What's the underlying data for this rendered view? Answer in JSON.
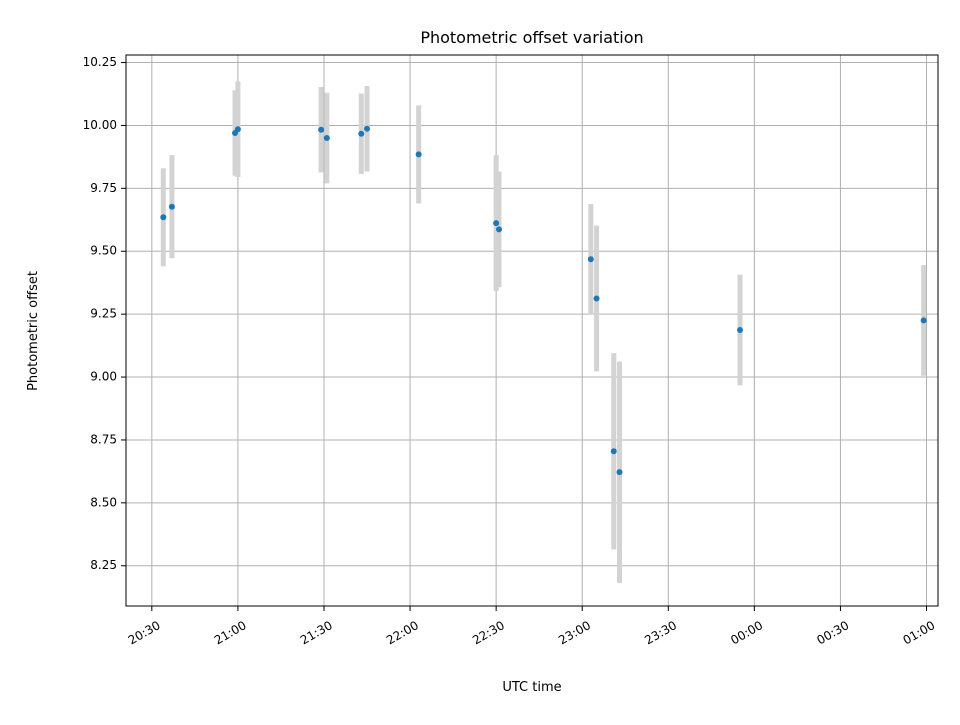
{
  "chart_data": {
    "type": "scatter",
    "title": "Photometric offset variation",
    "xlabel": "UTC time",
    "ylabel": "Photometric offset",
    "x_ticks": [
      "20:30",
      "21:00",
      "21:30",
      "22:00",
      "22:30",
      "23:00",
      "23:30",
      "00:00",
      "00:30",
      "01:00"
    ],
    "y_ticks": [
      "8.25",
      "8.50",
      "8.75",
      "9.00",
      "9.25",
      "9.50",
      "9.75",
      "10.00",
      "10.25"
    ],
    "xlim": [
      "20:21",
      "01:04"
    ],
    "ylim": [
      8.09,
      10.28
    ],
    "grid": true,
    "colors": {
      "points": "#1f77b4",
      "errorbars": "#d3d3d3",
      "grid": "#b0b0b0"
    },
    "series": [
      {
        "points": [
          {
            "x": "20:34",
            "y": 9.635,
            "err": 0.195
          },
          {
            "x": "20:37",
            "y": 9.677,
            "err": 0.205
          },
          {
            "x": "20:59",
            "y": 9.97,
            "err": 0.17
          },
          {
            "x": "21:00",
            "y": 9.985,
            "err": 0.19
          },
          {
            "x": "21:29",
            "y": 9.983,
            "err": 0.17
          },
          {
            "x": "21:31",
            "y": 9.95,
            "err": 0.18
          },
          {
            "x": "21:43",
            "y": 9.967,
            "err": 0.16
          },
          {
            "x": "21:45",
            "y": 9.987,
            "err": 0.17
          },
          {
            "x": "22:03",
            "y": 9.885,
            "err": 0.195
          },
          {
            "x": "22:30",
            "y": 9.612,
            "err": 0.27
          },
          {
            "x": "22:31",
            "y": 9.587,
            "err": 0.23
          },
          {
            "x": "23:03",
            "y": 9.468,
            "err": 0.22
          },
          {
            "x": "23:05",
            "y": 9.312,
            "err": 0.29
          },
          {
            "x": "23:11",
            "y": 8.705,
            "err": 0.39
          },
          {
            "x": "23:13",
            "y": 8.622,
            "err": 0.44
          },
          {
            "x": "23:55",
            "y": 9.187,
            "err": 0.22
          },
          {
            "x": "00:59",
            "y": 9.225,
            "err": 0.22
          }
        ]
      }
    ]
  }
}
